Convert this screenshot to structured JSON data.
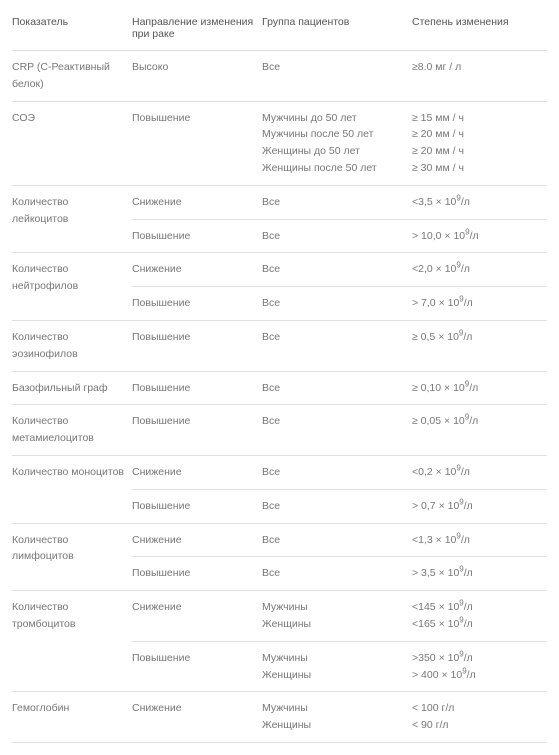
{
  "headers": {
    "indicator": "Показатель",
    "direction": "Направление изменения при раке",
    "group": "Группа пациентов",
    "degree": "Степень изменения"
  },
  "rows": {
    "crp": {
      "indicator": "CRP (С-Реактивный белок)",
      "direction": "Высоко",
      "group": "Все",
      "degree": "≥8.0 мг / л"
    },
    "esr": {
      "indicator": "СОЭ",
      "direction": "Повышение",
      "group1": "Мужчины до 50 лет",
      "degree1": "≥ 15 мм / ч",
      "group2": "Мужчины после 50 лет",
      "degree2": "≥ 20 мм / ч",
      "group3": "Женщины до 50 лет",
      "degree3": "≥ 20 мм / ч",
      "group4": "Женщины после 50 лет",
      "degree4": "≥ 30 мм / ч"
    },
    "wbc": {
      "indicator": "Количество лейкоцитов",
      "r1_dir": "Снижение",
      "r1_group": "Все",
      "r1_deg_pre": "<3,5 × 10",
      "r1_sup": "9",
      "r1_deg_post": "/л",
      "r2_dir": "Повышение",
      "r2_group": "Все",
      "r2_deg_pre": "> 10,0 × 10",
      "r2_sup": "9",
      "r2_deg_post": "/л"
    },
    "neut": {
      "indicator": "Количество нейтрофилов",
      "r1_dir": "Снижение",
      "r1_group": "Все",
      "r1_deg_pre": "<2,0 × 10",
      "r1_sup": "9",
      "r1_deg_post": "/л",
      "r2_dir": "Повышение",
      "r2_group": "Все",
      "r2_deg_pre": "> 7,0 × 10",
      "r2_sup": "9",
      "r2_deg_post": "/л"
    },
    "eos": {
      "indicator": "Количество эозинофилов",
      "direction": "Повышение",
      "group": "Все",
      "deg_pre": "≥ 0,5 × 10",
      "sup": "9",
      "deg_post": "/л"
    },
    "baso": {
      "indicator": "Базофильный граф",
      "direction": "Повышение",
      "group": "Все",
      "deg_pre": "≥ 0,10 × 10",
      "sup": "9",
      "deg_post": "/л"
    },
    "meta": {
      "indicator": "Количество метамиелоцитов",
      "direction": "Повышение",
      "group": "Все",
      "deg_pre": "≥ 0,05 × 10",
      "sup": "9",
      "deg_post": "/л"
    },
    "mono": {
      "indicator": "Количество моноцитов",
      "r1_dir": "Снижение",
      "r1_group": "Все",
      "r1_deg_pre": "<0,2 × 10",
      "r1_sup": "9",
      "r1_deg_post": "/л",
      "r2_dir": "Повышение",
      "r2_group": "Все",
      "r2_deg_pre": "> 0,7 × 10",
      "r2_sup": "9",
      "r2_deg_post": "/л"
    },
    "lymph": {
      "indicator": "Количество лимфоцитов",
      "r1_dir": "Снижение",
      "r1_group": "Все",
      "r1_deg_pre": "<1,3 × 10",
      "r1_sup": "9",
      "r1_deg_post": "/л",
      "r2_dir": "Повышение",
      "r2_group": "Все",
      "r2_deg_pre": "> 3,5 × 10",
      "r2_sup": "9",
      "r2_deg_post": "/л"
    },
    "plat": {
      "indicator": "Количество тромбоцитов",
      "r1_dir": "Снижение",
      "r1_g1": "Мужчины",
      "r1_d1_pre": "<145 × 10",
      "r1_d1_sup": "9",
      "r1_d1_post": "/л",
      "r1_g2": "Женщины",
      "r1_d2_pre": "<165 × 10",
      "r1_d2_sup": "9",
      "r1_d2_post": "/л",
      "r2_dir": "Повышение",
      "r2_g1": "Мужчины",
      "r2_d1_pre": ">350 × 10",
      "r2_d1_sup": "9",
      "r2_d1_post": "/л",
      "r2_g2": "Женщины",
      "r2_d2_pre": "> 400 × 10",
      "r2_d2_sup": "9",
      "r2_d2_post": "/л"
    },
    "hgb": {
      "indicator": "Гемоглобин",
      "direction": "Снижение",
      "g1": "Мужчины",
      "d1": "< 100 г/л",
      "g2": "Женщины",
      "d2": "< 90 г/л"
    }
  }
}
